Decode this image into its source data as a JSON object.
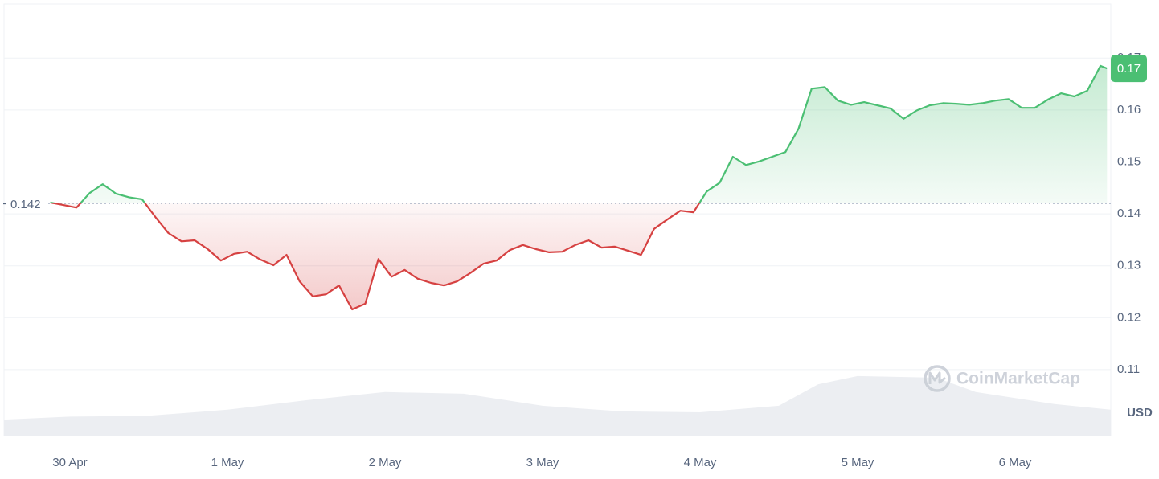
{
  "chart_data": {
    "type": "line",
    "x": [
      -3,
      -1,
      1,
      3,
      5,
      7,
      9,
      11,
      13,
      15,
      17,
      19,
      21,
      23,
      25,
      27,
      29,
      31,
      33,
      35,
      37,
      39,
      41,
      43,
      45,
      47,
      49,
      51,
      53,
      55,
      57,
      59,
      61,
      63,
      65,
      67,
      69,
      71,
      73,
      75,
      77,
      79,
      81,
      83,
      85,
      87,
      89,
      91,
      93,
      95,
      97,
      99,
      101,
      103,
      105,
      107,
      109,
      111,
      113,
      115,
      117,
      119,
      121,
      123,
      125,
      127,
      129,
      131,
      133,
      135,
      137,
      139,
      141,
      143,
      145,
      147,
      149,
      151,
      153,
      155,
      157,
      158
    ],
    "values": [
      0.1422,
      0.1417,
      0.1412,
      0.144,
      0.1457,
      0.1439,
      0.1432,
      0.1428,
      0.1394,
      0.1363,
      0.1347,
      0.1349,
      0.1332,
      0.131,
      0.1323,
      0.1327,
      0.1312,
      0.1301,
      0.1321,
      0.127,
      0.1241,
      0.1245,
      0.1262,
      0.1216,
      0.1227,
      0.1313,
      0.1279,
      0.1292,
      0.1275,
      0.1267,
      0.1262,
      0.127,
      0.1286,
      0.1304,
      0.131,
      0.133,
      0.134,
      0.1332,
      0.1326,
      0.1327,
      0.134,
      0.1349,
      0.1335,
      0.1337,
      0.1329,
      0.1321,
      0.1371,
      0.1389,
      0.1406,
      0.1403,
      0.1443,
      0.146,
      0.151,
      0.1494,
      0.1501,
      0.151,
      0.1519,
      0.1564,
      0.1641,
      0.1644,
      0.1618,
      0.161,
      0.1615,
      0.1609,
      0.1603,
      0.1583,
      0.1599,
      0.1609,
      0.1613,
      0.1612,
      0.161,
      0.1613,
      0.1618,
      0.1621,
      0.1604,
      0.1604,
      0.162,
      0.1632,
      0.1626,
      0.1637,
      0.1685,
      0.168
    ],
    "up_color": "#4bbf73",
    "down_color": "#d64141",
    "baseline": 0.142,
    "current_label": "0.17",
    "xlim": [
      -10.04,
      158.57
    ],
    "xticks": [
      {
        "value": 0,
        "label": "30 Apr"
      },
      {
        "value": 24,
        "label": "1 May"
      },
      {
        "value": 48,
        "label": "2 May"
      },
      {
        "value": 72,
        "label": "3 May"
      },
      {
        "value": 96,
        "label": "4 May"
      },
      {
        "value": 120,
        "label": "5 May"
      },
      {
        "value": 144,
        "label": "6 May"
      }
    ],
    "ylim": [
      0.0973,
      0.1804
    ],
    "yticks": [
      0.11,
      0.12,
      0.13,
      0.14,
      0.15,
      0.16,
      0.17
    ],
    "ylabel": "USD",
    "grid": true,
    "volume": {
      "x": [
        -10.04,
        0,
        12,
        24,
        36,
        48,
        60,
        72,
        84,
        96,
        108,
        114,
        120,
        132,
        138,
        150,
        158.57
      ],
      "values": [
        3.7,
        4.4,
        4.6,
        6.0,
        8.2,
        10.1,
        9.7,
        6.9,
        5.6,
        5.4,
        6.9,
        11.9,
        13.8,
        13.4,
        10.1,
        7.3,
        6.0
      ],
      "color": "#eceef2",
      "y2lim": [
        0,
        100
      ]
    },
    "watermark": "CoinMarketCap"
  }
}
